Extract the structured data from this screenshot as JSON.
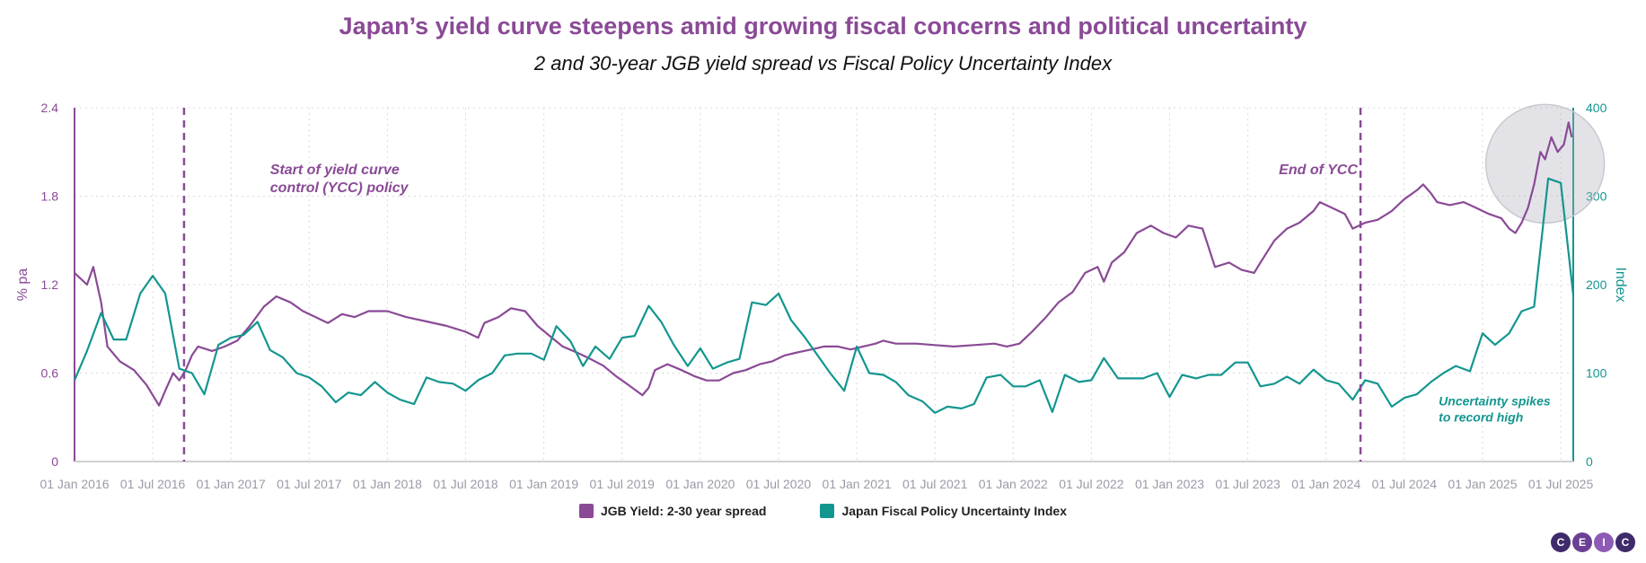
{
  "title": "Japan’s yield curve steepens amid growing fiscal concerns and political uncertainty",
  "subtitle": "2 and 30-year JGB yield spread vs Fiscal Policy Uncertainty Index",
  "colors": {
    "spread": "#8a4a96",
    "index": "#13968f",
    "title": "#8a4a96"
  },
  "logo": [
    "C",
    "E",
    "I",
    "C"
  ],
  "chart_data": {
    "type": "line",
    "title": "Japan’s yield curve steepens amid growing fiscal concerns and political uncertainty",
    "x_ticks": [
      "01 Jan 2016",
      "01 Jul 2016",
      "01 Jan 2017",
      "01 Jul 2017",
      "01 Jan 2018",
      "01 Jul 2018",
      "01 Jan 2019",
      "01 Jul 2019",
      "01 Jan 2020",
      "01 Jul 2020",
      "01 Jan 2021",
      "01 Jul 2021",
      "01 Jan 2022",
      "01 Jul 2022",
      "01 Jan 2023",
      "01 Jul 2023",
      "01 Jan 2024",
      "01 Jul 2024",
      "01 Jan 2025",
      "01 Jul 2025"
    ],
    "x_range": [
      2016.0,
      2025.58
    ],
    "y_left": {
      "label": "% pa",
      "range": [
        0,
        2.4
      ],
      "ticks": [
        "0",
        "0.6",
        "1.2",
        "1.8",
        "2.4"
      ]
    },
    "y_right": {
      "label": "Index",
      "range": [
        0,
        400
      ],
      "ticks": [
        "0",
        "100",
        "200",
        "300",
        "400"
      ]
    },
    "series": [
      {
        "name": "JGB Yield: 2-30 year spread",
        "axis": "left",
        "points": [
          [
            2016.0,
            1.28
          ],
          [
            2016.08,
            1.2
          ],
          [
            2016.12,
            1.32
          ],
          [
            2016.17,
            1.08
          ],
          [
            2016.21,
            0.78
          ],
          [
            2016.29,
            0.68
          ],
          [
            2016.38,
            0.62
          ],
          [
            2016.46,
            0.52
          ],
          [
            2016.5,
            0.45
          ],
          [
            2016.54,
            0.38
          ],
          [
            2016.58,
            0.48
          ],
          [
            2016.63,
            0.6
          ],
          [
            2016.67,
            0.55
          ],
          [
            2016.71,
            0.62
          ],
          [
            2016.75,
            0.72
          ],
          [
            2016.79,
            0.78
          ],
          [
            2016.88,
            0.75
          ],
          [
            2016.96,
            0.78
          ],
          [
            2017.04,
            0.82
          ],
          [
            2017.12,
            0.92
          ],
          [
            2017.21,
            1.05
          ],
          [
            2017.29,
            1.12
          ],
          [
            2017.38,
            1.08
          ],
          [
            2017.46,
            1.02
          ],
          [
            2017.54,
            0.98
          ],
          [
            2017.62,
            0.94
          ],
          [
            2017.71,
            1.0
          ],
          [
            2017.79,
            0.98
          ],
          [
            2017.88,
            1.02
          ],
          [
            2018.0,
            1.02
          ],
          [
            2018.12,
            0.98
          ],
          [
            2018.25,
            0.95
          ],
          [
            2018.38,
            0.92
          ],
          [
            2018.5,
            0.88
          ],
          [
            2018.58,
            0.84
          ],
          [
            2018.62,
            0.94
          ],
          [
            2018.71,
            0.98
          ],
          [
            2018.79,
            1.04
          ],
          [
            2018.88,
            1.02
          ],
          [
            2018.96,
            0.92
          ],
          [
            2019.04,
            0.85
          ],
          [
            2019.12,
            0.78
          ],
          [
            2019.21,
            0.74
          ],
          [
            2019.29,
            0.7
          ],
          [
            2019.38,
            0.65
          ],
          [
            2019.46,
            0.58
          ],
          [
            2019.54,
            0.52
          ],
          [
            2019.63,
            0.45
          ],
          [
            2019.67,
            0.5
          ],
          [
            2019.71,
            0.62
          ],
          [
            2019.79,
            0.66
          ],
          [
            2019.88,
            0.62
          ],
          [
            2019.96,
            0.58
          ],
          [
            2020.04,
            0.55
          ],
          [
            2020.12,
            0.55
          ],
          [
            2020.21,
            0.6
          ],
          [
            2020.29,
            0.62
          ],
          [
            2020.38,
            0.66
          ],
          [
            2020.46,
            0.68
          ],
          [
            2020.54,
            0.72
          ],
          [
            2020.62,
            0.74
          ],
          [
            2020.71,
            0.76
          ],
          [
            2020.79,
            0.78
          ],
          [
            2020.88,
            0.78
          ],
          [
            2020.96,
            0.76
          ],
          [
            2021.04,
            0.78
          ],
          [
            2021.12,
            0.8
          ],
          [
            2021.17,
            0.82
          ],
          [
            2021.25,
            0.8
          ],
          [
            2021.38,
            0.8
          ],
          [
            2021.5,
            0.79
          ],
          [
            2021.62,
            0.78
          ],
          [
            2021.75,
            0.79
          ],
          [
            2021.88,
            0.8
          ],
          [
            2021.96,
            0.78
          ],
          [
            2022.04,
            0.8
          ],
          [
            2022.12,
            0.88
          ],
          [
            2022.21,
            0.98
          ],
          [
            2022.29,
            1.08
          ],
          [
            2022.38,
            1.15
          ],
          [
            2022.46,
            1.28
          ],
          [
            2022.54,
            1.32
          ],
          [
            2022.58,
            1.22
          ],
          [
            2022.63,
            1.35
          ],
          [
            2022.71,
            1.42
          ],
          [
            2022.79,
            1.55
          ],
          [
            2022.88,
            1.6
          ],
          [
            2022.96,
            1.55
          ],
          [
            2023.04,
            1.52
          ],
          [
            2023.12,
            1.6
          ],
          [
            2023.21,
            1.58
          ],
          [
            2023.25,
            1.45
          ],
          [
            2023.29,
            1.32
          ],
          [
            2023.38,
            1.35
          ],
          [
            2023.46,
            1.3
          ],
          [
            2023.54,
            1.28
          ],
          [
            2023.58,
            1.35
          ],
          [
            2023.67,
            1.5
          ],
          [
            2023.75,
            1.58
          ],
          [
            2023.83,
            1.62
          ],
          [
            2023.92,
            1.7
          ],
          [
            2023.96,
            1.76
          ],
          [
            2024.04,
            1.72
          ],
          [
            2024.12,
            1.68
          ],
          [
            2024.17,
            1.58
          ],
          [
            2024.25,
            1.62
          ],
          [
            2024.33,
            1.64
          ],
          [
            2024.42,
            1.7
          ],
          [
            2024.5,
            1.78
          ],
          [
            2024.58,
            1.84
          ],
          [
            2024.62,
            1.88
          ],
          [
            2024.67,
            1.82
          ],
          [
            2024.71,
            1.76
          ],
          [
            2024.79,
            1.74
          ],
          [
            2024.88,
            1.76
          ],
          [
            2024.96,
            1.72
          ],
          [
            2025.04,
            1.68
          ],
          [
            2025.12,
            1.65
          ],
          [
            2025.17,
            1.58
          ],
          [
            2025.21,
            1.55
          ],
          [
            2025.25,
            1.62
          ],
          [
            2025.29,
            1.72
          ],
          [
            2025.33,
            1.88
          ],
          [
            2025.37,
            2.1
          ],
          [
            2025.4,
            2.05
          ],
          [
            2025.44,
            2.2
          ],
          [
            2025.48,
            2.1
          ],
          [
            2025.52,
            2.15
          ],
          [
            2025.55,
            2.3
          ],
          [
            2025.57,
            2.2
          ]
        ]
      },
      {
        "name": "Japan Fiscal Policy Uncertainty Index",
        "axis": "right",
        "points": [
          [
            2016.0,
            92
          ],
          [
            2016.08,
            125
          ],
          [
            2016.17,
            168
          ],
          [
            2016.25,
            138
          ],
          [
            2016.33,
            138
          ],
          [
            2016.42,
            190
          ],
          [
            2016.5,
            210
          ],
          [
            2016.58,
            190
          ],
          [
            2016.67,
            105
          ],
          [
            2016.75,
            100
          ],
          [
            2016.83,
            76
          ],
          [
            2016.92,
            132
          ],
          [
            2017.0,
            140
          ],
          [
            2017.08,
            143
          ],
          [
            2017.17,
            158
          ],
          [
            2017.25,
            126
          ],
          [
            2017.33,
            118
          ],
          [
            2017.42,
            100
          ],
          [
            2017.5,
            95
          ],
          [
            2017.58,
            85
          ],
          [
            2017.67,
            67
          ],
          [
            2017.75,
            78
          ],
          [
            2017.83,
            75
          ],
          [
            2017.92,
            90
          ],
          [
            2018.0,
            78
          ],
          [
            2018.08,
            70
          ],
          [
            2018.17,
            65
          ],
          [
            2018.25,
            95
          ],
          [
            2018.33,
            90
          ],
          [
            2018.42,
            88
          ],
          [
            2018.5,
            80
          ],
          [
            2018.58,
            92
          ],
          [
            2018.67,
            100
          ],
          [
            2018.75,
            120
          ],
          [
            2018.83,
            122
          ],
          [
            2018.92,
            122
          ],
          [
            2019.0,
            115
          ],
          [
            2019.08,
            153
          ],
          [
            2019.17,
            136
          ],
          [
            2019.25,
            108
          ],
          [
            2019.33,
            130
          ],
          [
            2019.42,
            116
          ],
          [
            2019.5,
            140
          ],
          [
            2019.58,
            142
          ],
          [
            2019.67,
            176
          ],
          [
            2019.75,
            158
          ],
          [
            2019.83,
            132
          ],
          [
            2019.92,
            108
          ],
          [
            2020.0,
            128
          ],
          [
            2020.08,
            105
          ],
          [
            2020.17,
            112
          ],
          [
            2020.25,
            116
          ],
          [
            2020.33,
            180
          ],
          [
            2020.42,
            177
          ],
          [
            2020.5,
            190
          ],
          [
            2020.58,
            160
          ],
          [
            2020.67,
            140
          ],
          [
            2020.75,
            120
          ],
          [
            2020.83,
            100
          ],
          [
            2020.92,
            80
          ],
          [
            2021.0,
            130
          ],
          [
            2021.08,
            100
          ],
          [
            2021.17,
            98
          ],
          [
            2021.25,
            90
          ],
          [
            2021.33,
            75
          ],
          [
            2021.42,
            68
          ],
          [
            2021.5,
            55
          ],
          [
            2021.58,
            62
          ],
          [
            2021.67,
            60
          ],
          [
            2021.75,
            65
          ],
          [
            2021.83,
            95
          ],
          [
            2021.92,
            98
          ],
          [
            2022.0,
            85
          ],
          [
            2022.08,
            85
          ],
          [
            2022.17,
            92
          ],
          [
            2022.25,
            56
          ],
          [
            2022.33,
            98
          ],
          [
            2022.42,
            90
          ],
          [
            2022.5,
            92
          ],
          [
            2022.58,
            117
          ],
          [
            2022.67,
            94
          ],
          [
            2022.75,
            94
          ],
          [
            2022.83,
            94
          ],
          [
            2022.92,
            100
          ],
          [
            2023.0,
            73
          ],
          [
            2023.08,
            98
          ],
          [
            2023.17,
            94
          ],
          [
            2023.25,
            98
          ],
          [
            2023.33,
            98
          ],
          [
            2023.42,
            112
          ],
          [
            2023.5,
            112
          ],
          [
            2023.58,
            85
          ],
          [
            2023.67,
            88
          ],
          [
            2023.75,
            96
          ],
          [
            2023.83,
            88
          ],
          [
            2023.92,
            104
          ],
          [
            2024.0,
            92
          ],
          [
            2024.08,
            88
          ],
          [
            2024.17,
            70
          ],
          [
            2024.25,
            92
          ],
          [
            2024.33,
            88
          ],
          [
            2024.42,
            62
          ],
          [
            2024.5,
            72
          ],
          [
            2024.58,
            76
          ],
          [
            2024.67,
            90
          ],
          [
            2024.75,
            100
          ],
          [
            2024.83,
            108
          ],
          [
            2024.92,
            102
          ],
          [
            2025.0,
            145
          ],
          [
            2025.08,
            132
          ],
          [
            2025.17,
            145
          ],
          [
            2025.25,
            170
          ],
          [
            2025.33,
            175
          ],
          [
            2025.42,
            320
          ],
          [
            2025.5,
            315
          ],
          [
            2025.58,
            188
          ]
        ]
      }
    ],
    "vlines": [
      {
        "x": 2016.7,
        "label_lines": [
          "Start of yield curve",
          "control (YCC) policy"
        ],
        "label_x": 2017.25,
        "label_y": 1.95
      },
      {
        "x": 2024.22,
        "label_lines": [
          "End of YCC"
        ],
        "label_x": 2023.95,
        "label_y": 1.95
      }
    ],
    "annotations": [
      {
        "text_lines": [
          "Uncertainty spikes",
          "to record high"
        ],
        "x": 2024.72,
        "y": 0.38
      }
    ],
    "highlight": {
      "x": 2025.4,
      "y": 2.02
    },
    "grid": true,
    "legend": "bottom-center"
  }
}
